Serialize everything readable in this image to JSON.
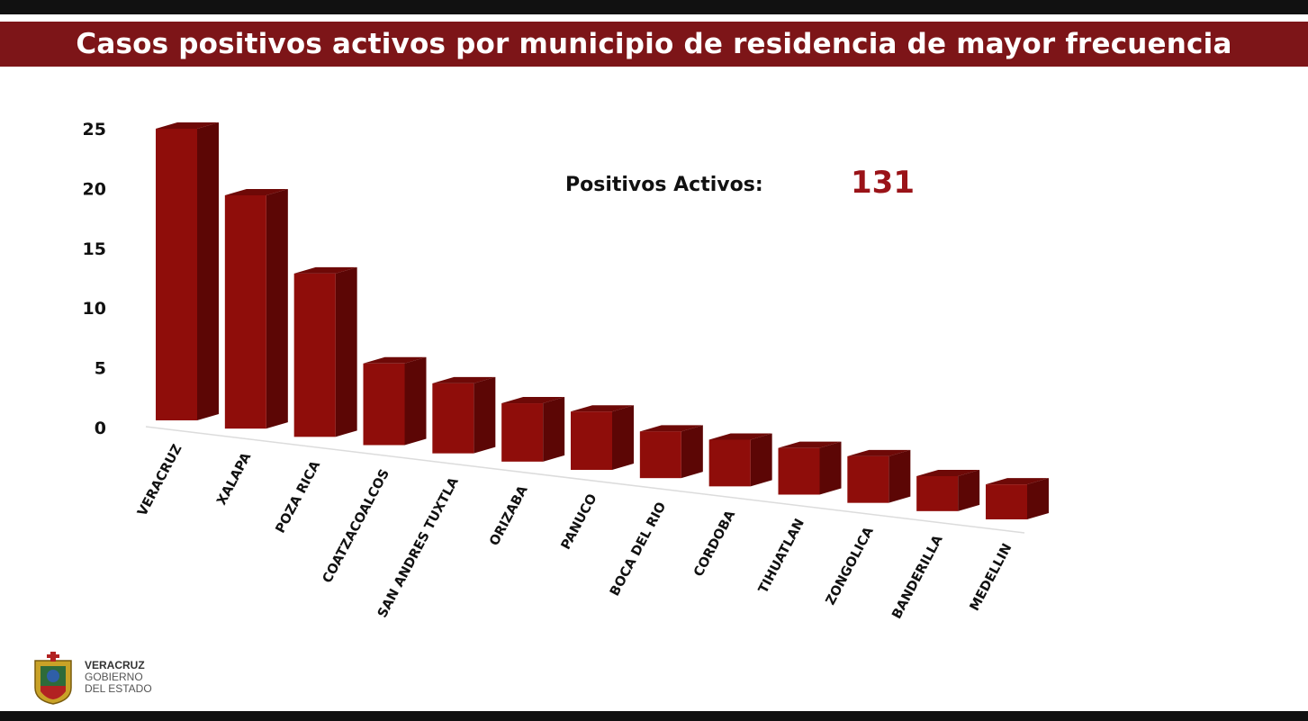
{
  "header": {
    "title": "Casos positivos activos por municipio de residencia de mayor frecuencia"
  },
  "summary": {
    "label": "Positivos Activos:",
    "value": "131"
  },
  "logo": {
    "line1": "VERACRUZ",
    "line2": "GOBIERNO",
    "line3": "DEL ESTADO"
  },
  "colors": {
    "banner": "#7d1518",
    "bar_front": "#8f0d0a",
    "bar_side": "#5c0605",
    "bar_top": "#6e0907",
    "accent_value": "#9a1318"
  },
  "chart_data": {
    "type": "bar",
    "style": "3d",
    "title": "Casos positivos activos por municipio de residencia de mayor frecuencia",
    "xlabel": "",
    "ylabel": "",
    "categories": [
      "VERACRUZ",
      "XALAPA",
      "POZA RICA",
      "COATZACOALCOS",
      "SAN ANDRES TUXTLA",
      "ORIZABA",
      "PANUCO",
      "BOCA DEL RIO",
      "CORDOBA",
      "TIHUATLAN",
      "ZONGOLICA",
      "BANDERILLA",
      "MEDELLIN"
    ],
    "values": [
      25,
      20,
      14,
      7,
      6,
      5,
      5,
      4,
      4,
      4,
      4,
      3,
      3
    ],
    "yticks": [
      "0",
      "5",
      "10",
      "15",
      "20",
      "25"
    ],
    "ylim": [
      0,
      25
    ],
    "grid": false,
    "legend": "none"
  }
}
